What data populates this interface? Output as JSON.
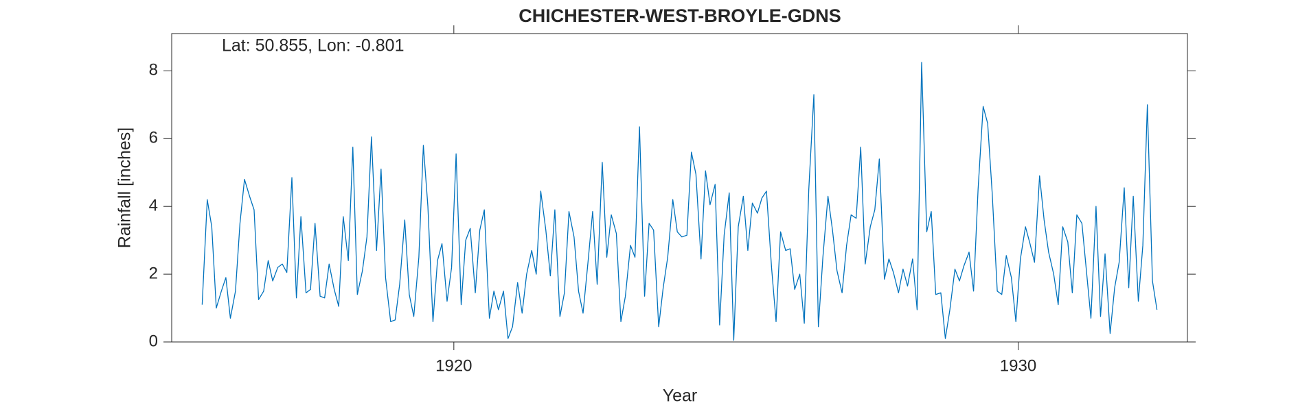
{
  "chart_data": {
    "type": "line",
    "title": "CHICHESTER-WEST-BROYLE-GDNS",
    "annotation": "Lat: 50.855, Lon: -0.801",
    "xlabel": "Year",
    "ylabel": "Rainfall [inches]",
    "xlim": [
      1915,
      1933
    ],
    "ylim": [
      0,
      9.1
    ],
    "xticks": [
      1920,
      1930
    ],
    "yticks": [
      0,
      2,
      4,
      6,
      8
    ],
    "grid": false,
    "x": [
      1915.54,
      1915.63,
      1915.71,
      1915.79,
      1915.88,
      1915.96,
      1916.04,
      1916.13,
      1916.21,
      1916.29,
      1916.38,
      1916.46,
      1916.54,
      1916.63,
      1916.71,
      1916.79,
      1916.88,
      1916.96,
      1917.04,
      1917.13,
      1917.21,
      1917.29,
      1917.38,
      1917.46,
      1917.54,
      1917.63,
      1917.71,
      1917.79,
      1917.88,
      1917.96,
      1918.04,
      1918.13,
      1918.21,
      1918.29,
      1918.38,
      1918.46,
      1918.54,
      1918.63,
      1918.71,
      1918.79,
      1918.88,
      1918.96,
      1919.04,
      1919.13,
      1919.21,
      1919.29,
      1919.38,
      1919.46,
      1919.54,
      1919.63,
      1919.71,
      1919.79,
      1919.88,
      1919.96,
      1920.04,
      1920.13,
      1920.21,
      1920.29,
      1920.38,
      1920.46,
      1920.54,
      1920.63,
      1920.71,
      1920.79,
      1920.88,
      1920.96,
      1921.04,
      1921.13,
      1921.21,
      1921.29,
      1921.38,
      1921.46,
      1921.54,
      1921.63,
      1921.71,
      1921.79,
      1921.88,
      1921.96,
      1922.04,
      1922.13,
      1922.21,
      1922.29,
      1922.38,
      1922.46,
      1922.54,
      1922.63,
      1922.71,
      1922.79,
      1922.88,
      1922.96,
      1923.04,
      1923.13,
      1923.21,
      1923.29,
      1923.38,
      1923.46,
      1923.54,
      1923.63,
      1923.71,
      1923.79,
      1923.88,
      1923.96,
      1924.04,
      1924.13,
      1924.21,
      1924.29,
      1924.38,
      1924.46,
      1924.54,
      1924.63,
      1924.71,
      1924.79,
      1924.88,
      1924.96,
      1925.04,
      1925.13,
      1925.21,
      1925.29,
      1925.38,
      1925.46,
      1925.54,
      1925.63,
      1925.71,
      1925.79,
      1925.88,
      1925.96,
      1926.04,
      1926.13,
      1926.21,
      1926.29,
      1926.38,
      1926.46,
      1926.54,
      1926.63,
      1926.71,
      1926.79,
      1926.88,
      1926.96,
      1927.04,
      1927.13,
      1927.21,
      1927.29,
      1927.38,
      1927.46,
      1927.54,
      1927.63,
      1927.71,
      1927.79,
      1927.88,
      1927.96,
      1928.04,
      1928.13,
      1928.21,
      1928.29,
      1928.38,
      1928.46,
      1928.54,
      1928.63,
      1928.71,
      1928.79,
      1928.88,
      1928.96,
      1929.04,
      1929.13,
      1929.21,
      1929.29,
      1929.38,
      1929.46,
      1929.54,
      1929.63,
      1929.71,
      1929.79,
      1929.88,
      1929.96,
      1930.04,
      1930.13,
      1930.21,
      1930.29,
      1930.38,
      1930.46,
      1930.54,
      1930.63,
      1930.71,
      1930.79,
      1930.88,
      1930.96,
      1931.04,
      1931.13,
      1931.21,
      1931.29,
      1931.38,
      1931.46,
      1931.54,
      1931.63,
      1931.71,
      1931.79,
      1931.88,
      1931.96,
      1932.04,
      1932.13,
      1932.21,
      1932.29,
      1932.38,
      1932.46
    ],
    "series": [
      {
        "color": "#0072bd",
        "values": [
          1.1,
          4.2,
          3.4,
          1.0,
          1.5,
          1.9,
          0.7,
          1.5,
          3.5,
          4.8,
          4.3,
          3.9,
          1.25,
          1.5,
          2.4,
          1.8,
          2.2,
          2.3,
          2.05,
          4.85,
          1.3,
          3.7,
          1.45,
          1.55,
          3.5,
          1.35,
          1.3,
          2.3,
          1.55,
          1.05,
          3.7,
          2.4,
          5.75,
          1.4,
          2.1,
          3.1,
          6.05,
          2.7,
          5.1,
          1.9,
          0.6,
          0.65,
          1.7,
          3.6,
          1.4,
          0.75,
          2.5,
          5.8,
          4.0,
          0.6,
          2.4,
          2.9,
          1.2,
          2.2,
          5.55,
          1.1,
          3.0,
          3.35,
          1.45,
          3.3,
          3.9,
          0.7,
          1.5,
          0.95,
          1.5,
          0.1,
          0.45,
          1.75,
          0.85,
          2.0,
          2.7,
          2.0,
          4.45,
          3.3,
          1.95,
          3.9,
          0.75,
          1.45,
          3.85,
          3.1,
          1.5,
          0.85,
          2.4,
          3.85,
          1.7,
          5.3,
          2.5,
          3.75,
          3.2,
          0.6,
          1.35,
          2.85,
          2.5,
          6.35,
          1.35,
          3.5,
          3.3,
          0.45,
          1.6,
          2.5,
          4.2,
          3.25,
          3.1,
          3.15,
          5.6,
          4.95,
          2.45,
          5.05,
          4.05,
          4.65,
          0.5,
          3.15,
          4.4,
          0.05,
          3.4,
          4.3,
          2.7,
          4.1,
          3.8,
          4.25,
          4.45,
          2.2,
          0.6,
          3.25,
          2.7,
          2.75,
          1.55,
          2.0,
          0.55,
          4.5,
          7.3,
          0.45,
          2.5,
          4.3,
          3.3,
          2.1,
          1.45,
          2.85,
          3.75,
          3.65,
          5.75,
          2.3,
          3.4,
          3.9,
          5.4,
          1.85,
          2.45,
          2.05,
          1.45,
          2.15,
          1.65,
          2.45,
          0.95,
          8.25,
          3.25,
          3.85,
          1.4,
          1.45,
          0.1,
          0.95,
          2.15,
          1.8,
          2.25,
          2.65,
          1.5,
          4.5,
          6.95,
          6.45,
          4.4,
          1.5,
          1.4,
          2.55,
          1.9,
          0.6,
          2.45,
          3.4,
          2.9,
          2.35,
          4.9,
          3.6,
          2.65,
          2.0,
          1.1,
          3.4,
          2.95,
          1.45,
          3.75,
          3.5,
          2.1,
          0.7,
          4.0,
          0.75,
          2.6,
          0.25,
          1.6,
          2.35,
          4.55,
          1.6,
          4.3,
          1.2,
          2.85,
          7.0,
          1.8,
          0.95
        ]
      }
    ]
  }
}
